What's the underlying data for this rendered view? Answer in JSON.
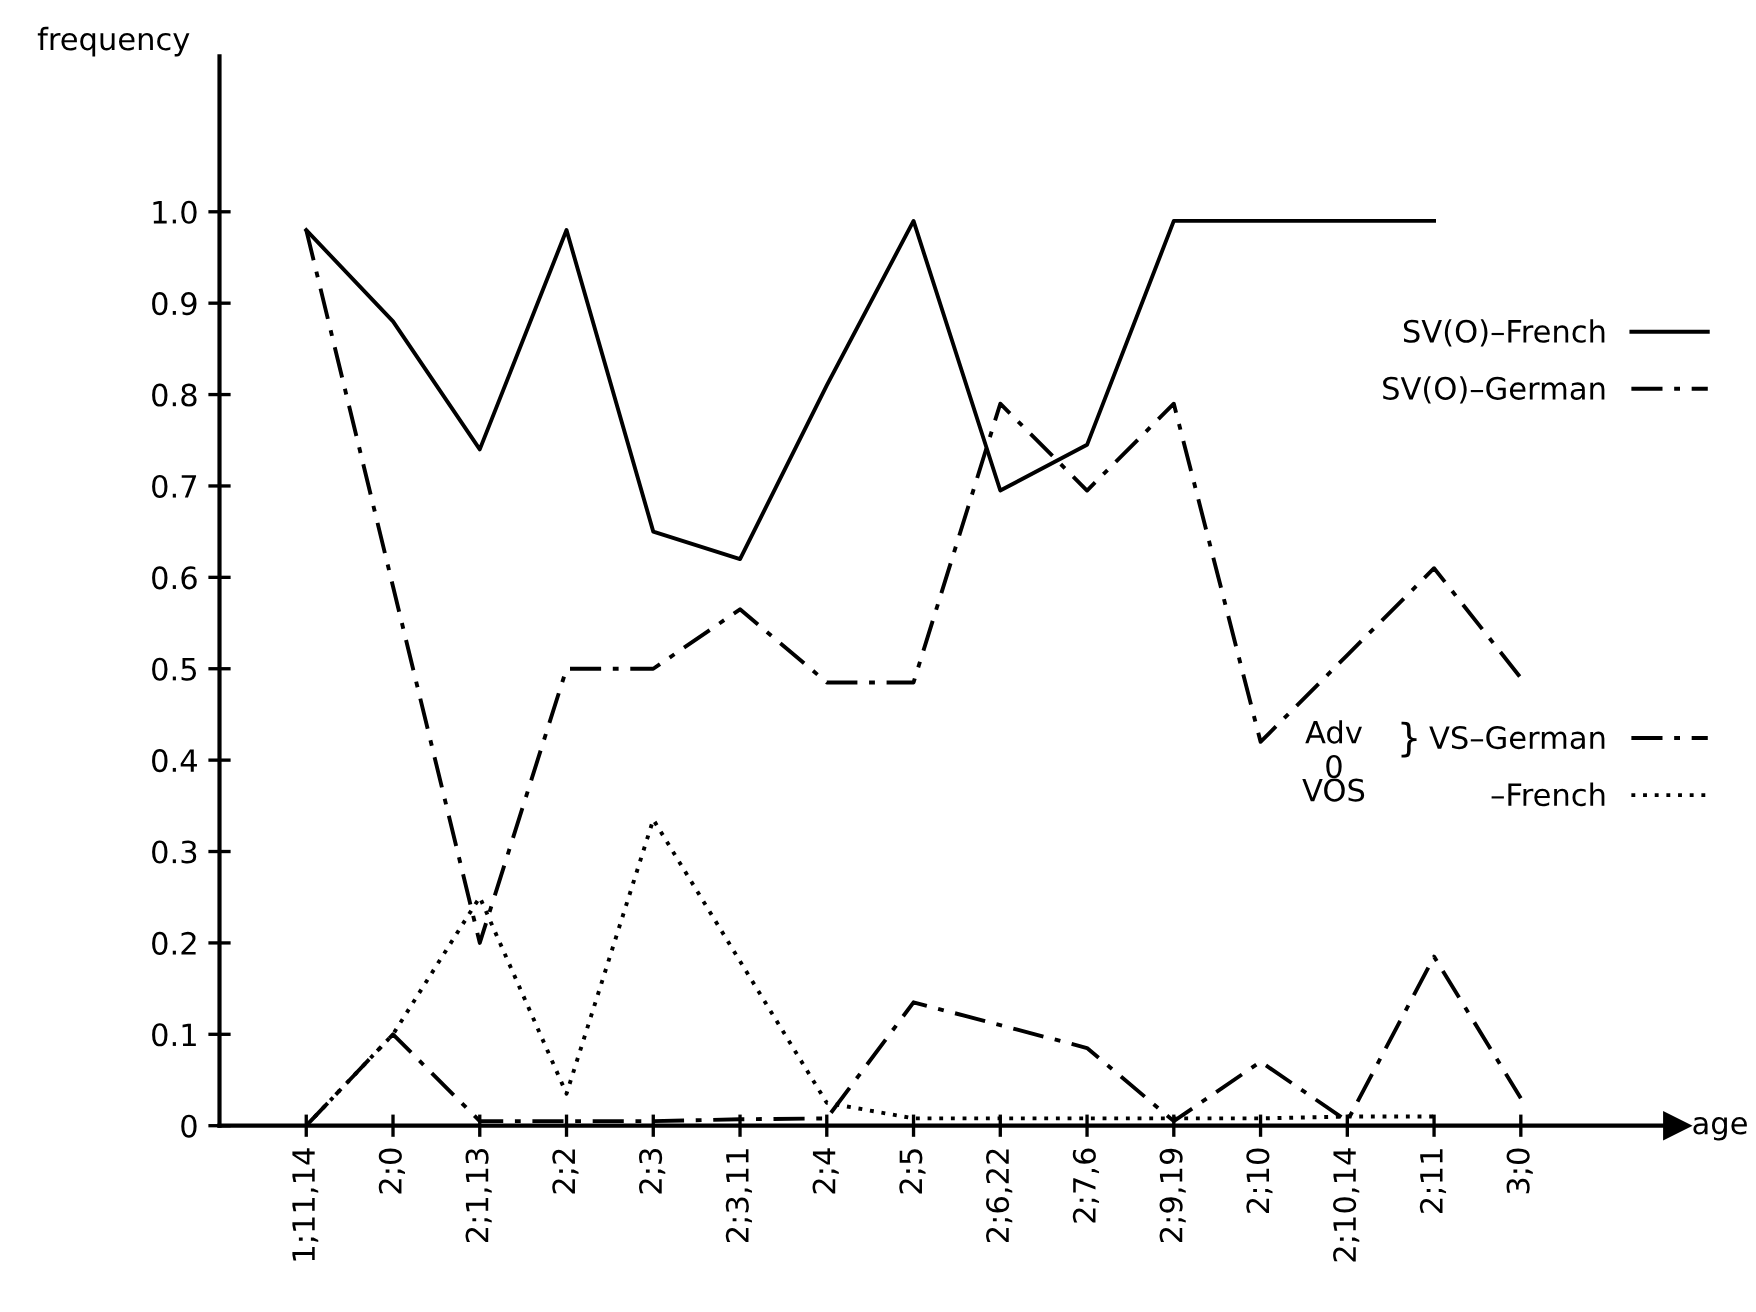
{
  "chart_data": {
    "type": "line",
    "ylabel": "frequency",
    "xlabel": "age",
    "categories": [
      "1;11,14",
      "2;0",
      "2;1,13",
      "2;2",
      "2;3",
      "2;3,11",
      "2;4",
      "2;5",
      "2;6,22",
      "2;7,6",
      "2;9,19",
      "2;10",
      "2;10,14",
      "2;11",
      "3;0"
    ],
    "series": [
      {
        "name": "SV(O)–French",
        "color": "#000000",
        "line_style": "solid",
        "values": [
          0.98,
          0.88,
          0.74,
          0.98,
          0.65,
          0.62,
          0.81,
          0.99,
          0.695,
          0.745,
          0.99,
          0.99,
          0.99,
          0.99,
          null
        ]
      },
      {
        "name": "SV(O)–German",
        "color": "#000000",
        "line_style": "dashdot",
        "values": [
          0.98,
          0.59,
          0.2,
          0.5,
          0.5,
          0.565,
          0.485,
          0.485,
          0.79,
          0.695,
          0.79,
          0.42,
          0.515,
          0.61,
          0.49
        ]
      },
      {
        "name": "VS–German",
        "color": "#000000",
        "line_style": "dashdot",
        "values": [
          0,
          0.1,
          0.005,
          0.005,
          0.005,
          0.007,
          0.008,
          0.135,
          0.11,
          0.085,
          0.005,
          0.07,
          0.005,
          0.185,
          0.03
        ]
      },
      {
        "name": "–French",
        "color": "#000000",
        "line_style": "dotted",
        "values": [
          0,
          0.1,
          0.25,
          0.035,
          0.335,
          0.18,
          0.025,
          0.008,
          0.008,
          0.008,
          0.008,
          0.008,
          0.01,
          0.01,
          null
        ]
      }
    ],
    "annotations": [
      "Adv",
      "0",
      "VOS",
      "}"
    ],
    "ylim": [
      0,
      1.17
    ],
    "yticks": [
      0,
      0.1,
      0.2,
      0.3,
      0.4,
      0.5,
      0.6,
      0.7,
      0.8,
      0.9,
      {
        "value": 1,
        "label": "1.0"
      }
    ],
    "grid": false,
    "legend": "right",
    "marker": "none"
  }
}
